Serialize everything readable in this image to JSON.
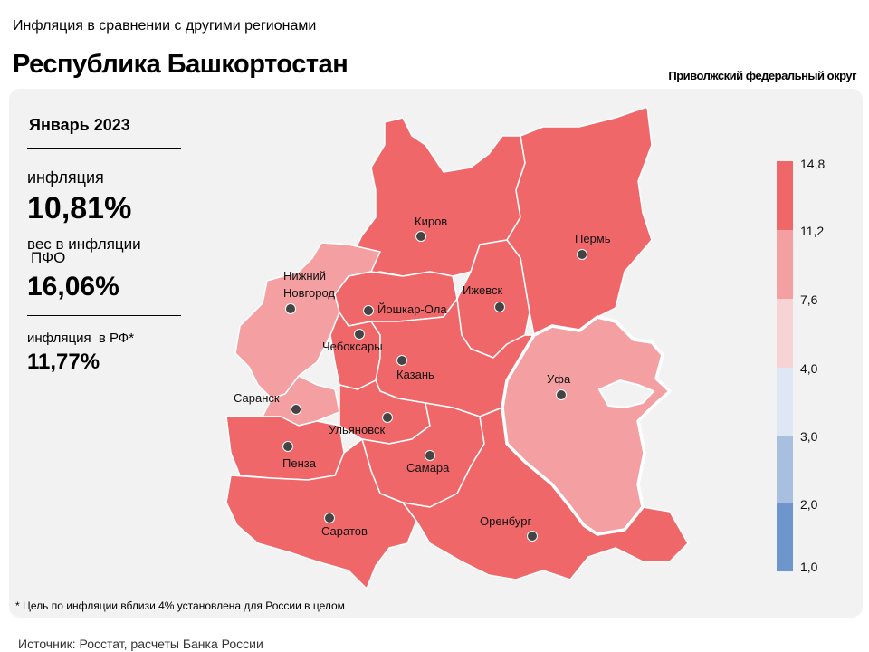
{
  "header": {
    "subtitle": "Инфляция в сравнении с другими регионами",
    "title": "Республика Башкортостан",
    "district": "Приволжский федеральный округ"
  },
  "stats": {
    "period": "Январь 2023",
    "inflation_label": "инфляция",
    "inflation_value": "10,81%",
    "weight_label": "вес в инфляции",
    "weight_label_suffix": "ПФО",
    "weight_value": "16,06%",
    "rf_label": "инфляция",
    "rf_label_suffix": "в РФ*",
    "rf_value": "11,77%"
  },
  "map": {
    "colors": {
      "highest": "#f0676a",
      "high": "#f4a0a3",
      "selected_border": "#ffffff"
    },
    "cities": [
      {
        "name": "Киров",
        "label": "Киров"
      },
      {
        "name": "Пермь",
        "label": "Пермь"
      },
      {
        "name": "Нижний Новгород",
        "label_lines": [
          "Нижний",
          "Новгород"
        ]
      },
      {
        "name": "Ижевск",
        "label": "Ижевск"
      },
      {
        "name": "Йошкар-Ола",
        "label": "Йошкар-Ола"
      },
      {
        "name": "Чебоксары",
        "label": "Чебоксары"
      },
      {
        "name": "Казань",
        "label": "Казань"
      },
      {
        "name": "Уфа",
        "label": "Уфа"
      },
      {
        "name": "Саранск",
        "label": "Саранск"
      },
      {
        "name": "Ульяновск",
        "label": "Ульяновск"
      },
      {
        "name": "Пенза",
        "label": "Пенза"
      },
      {
        "name": "Самара",
        "label": "Самара"
      },
      {
        "name": "Оренбург",
        "label": "Оренбург"
      },
      {
        "name": "Саратов",
        "label": "Саратов"
      }
    ]
  },
  "legend": {
    "ticks": [
      "14,8",
      "11,2",
      "7,6",
      "4,0",
      "3,0",
      "2,0",
      "1,0"
    ],
    "colors": [
      "#f0676a",
      "#f4a0a3",
      "#f8d3d5",
      "#dfe6f4",
      "#a9bfe0",
      "#6f96cc"
    ]
  },
  "footnote": "* Цель по инфляции вблизи 4% установлена для России в целом",
  "source": "Источник: Росстат, расчеты Банка России"
}
